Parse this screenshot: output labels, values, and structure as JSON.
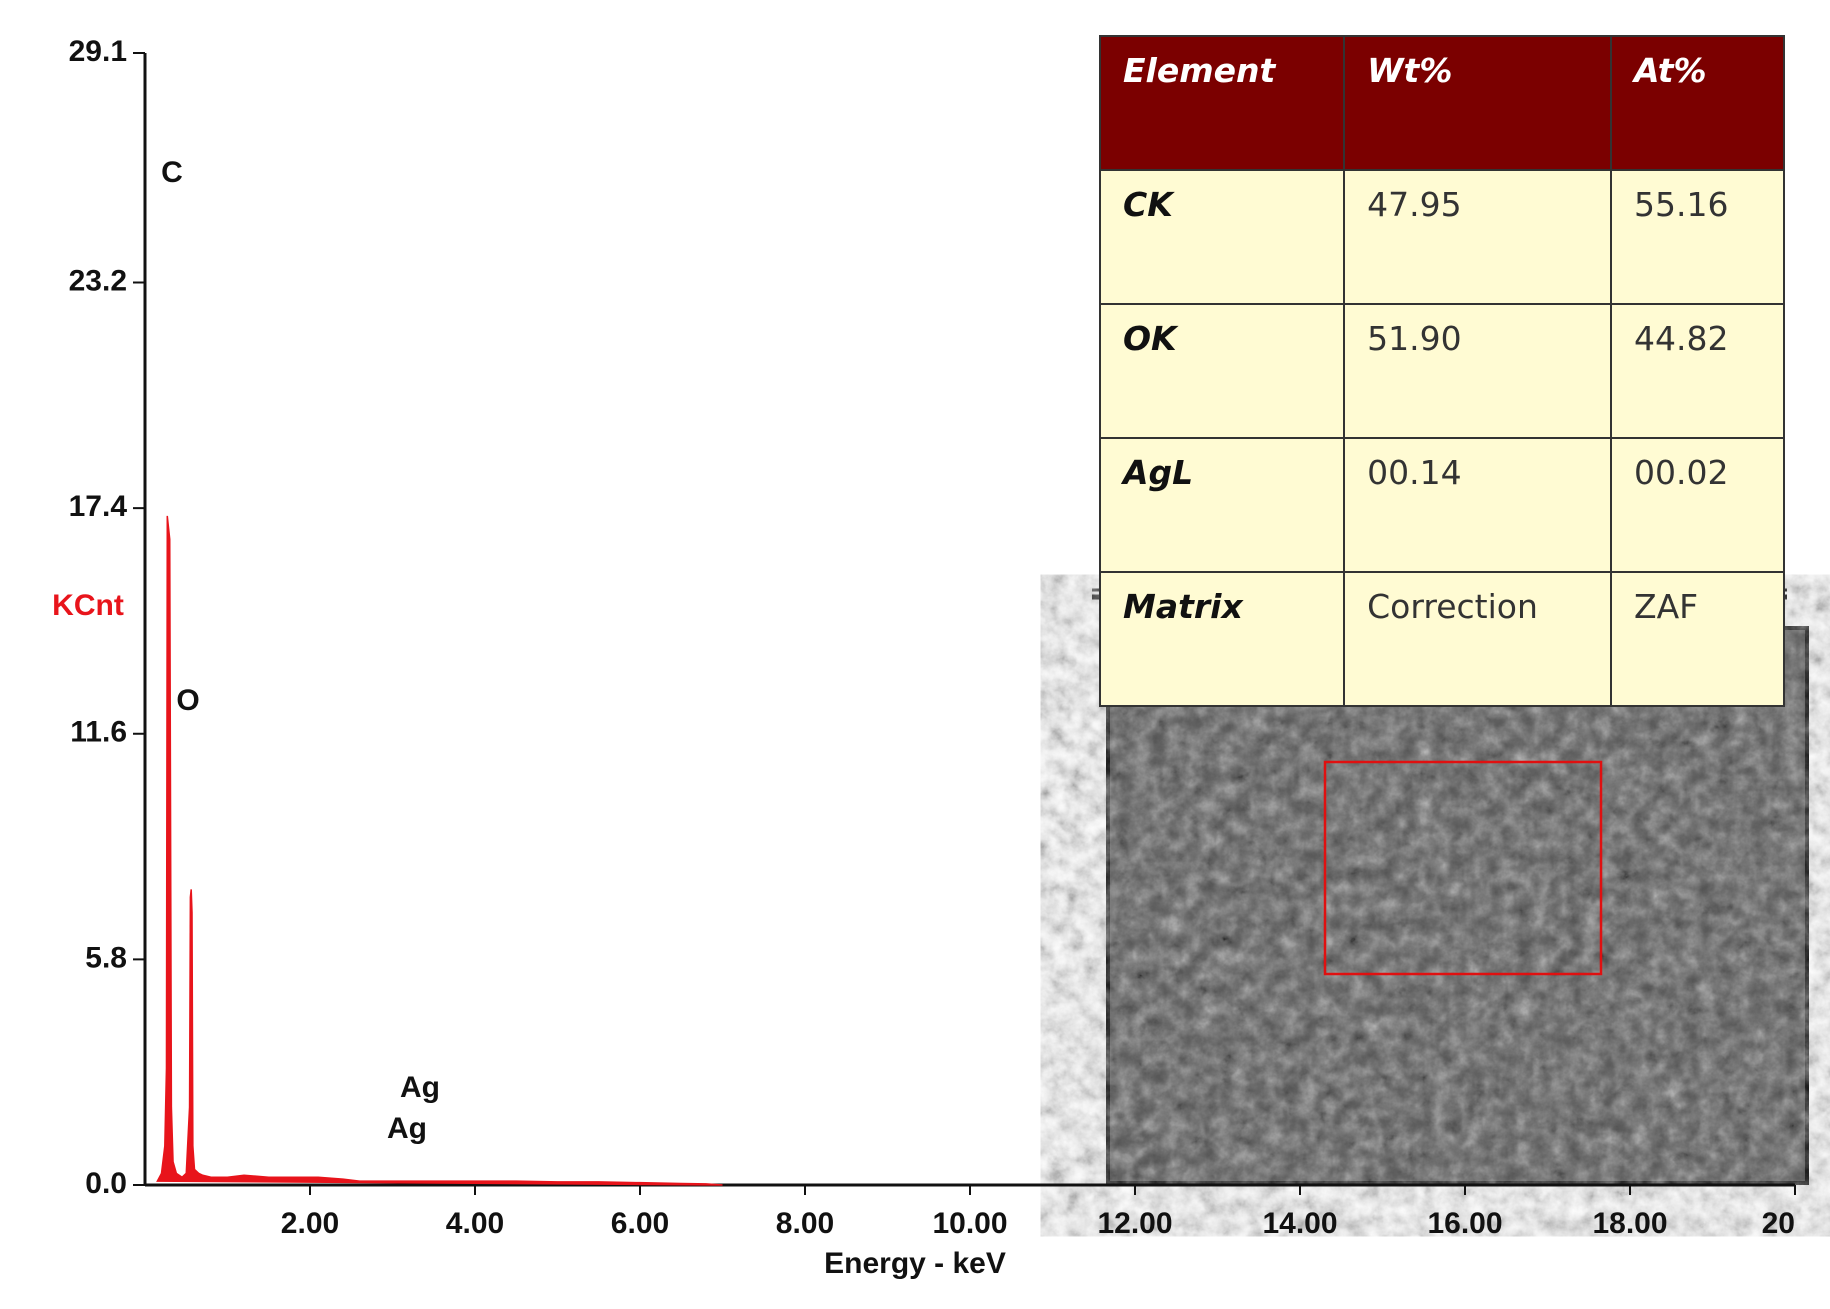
{
  "chart_data": {
    "type": "area",
    "x_label": "Energy - keV",
    "y_label": "KCnt",
    "x": [
      0.15,
      0.2,
      0.24,
      0.26,
      0.27,
      0.28,
      0.3,
      0.32,
      0.34,
      0.38,
      0.45,
      0.5,
      0.54,
      0.55,
      0.56,
      0.57,
      0.58,
      0.6,
      0.65,
      0.7,
      0.8,
      1.0,
      1.2,
      1.5,
      1.8,
      2.1,
      2.4,
      2.6,
      3.0,
      3.5,
      4.0,
      4.5,
      5.0,
      5.5,
      6.0,
      6.5,
      6.8,
      7.0
    ],
    "series": [
      {
        "color": "#e8141b",
        "values": [
          0.1,
          0.3,
          1.0,
          3.0,
          17.2,
          17.0,
          16.6,
          2.0,
          0.6,
          0.3,
          0.2,
          0.3,
          2.0,
          7.4,
          7.6,
          7.0,
          1.0,
          0.4,
          0.3,
          0.25,
          0.2,
          0.2,
          0.25,
          0.2,
          0.2,
          0.2,
          0.15,
          0.1,
          0.1,
          0.1,
          0.1,
          0.1,
          0.08,
          0.08,
          0.06,
          0.04,
          0.03,
          0
        ]
      }
    ],
    "annotations": [
      "C",
      "O",
      "Ag",
      "Ag"
    ],
    "xlim": [
      0,
      20
    ],
    "xticks": [
      {
        "value": 2,
        "label": "2.00"
      },
      {
        "value": 4,
        "label": "4.00"
      },
      {
        "value": 6,
        "label": "6.00"
      },
      {
        "value": 8,
        "label": "8.00"
      },
      {
        "value": 10,
        "label": "10.00"
      },
      {
        "value": 12,
        "label": "12.00"
      },
      {
        "value": 14,
        "label": "14.00"
      },
      {
        "value": 16,
        "label": "16.00"
      },
      {
        "value": 18,
        "label": "18.00"
      },
      20
    ],
    "ylim": [
      0,
      29.1
    ],
    "yticks": [
      {
        "value": 0,
        "label": "0.0"
      },
      5.8,
      11.6,
      17.4,
      23.2,
      29.1
    ]
  },
  "table": {
    "header": [
      "Element",
      "Wt%",
      "At%"
    ],
    "rows": [
      [
        "CK",
        "47.95",
        "55.16"
      ],
      [
        "OK",
        "51.90",
        "44.82"
      ],
      [
        "AgL",
        "00.14",
        "00.02"
      ],
      [
        "Matrix",
        "Correction",
        "ZAF"
      ]
    ]
  }
}
